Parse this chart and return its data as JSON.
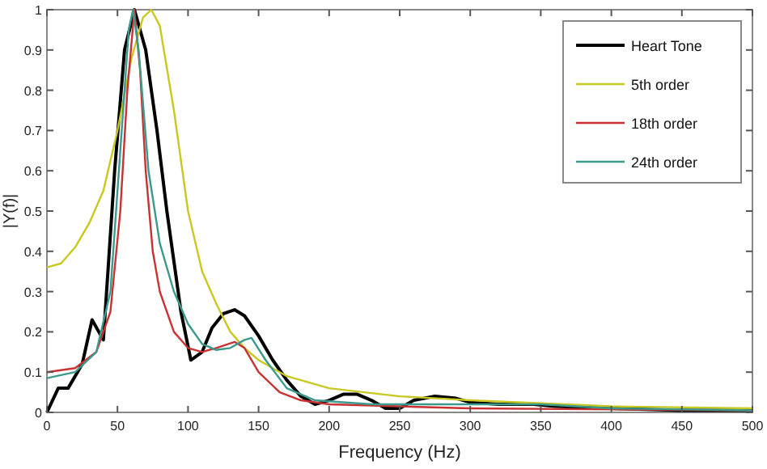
{
  "chart_data": {
    "type": "line",
    "xlabel": "Frequency (Hz)",
    "ylabel": "|Y(f)|",
    "xlim": [
      0,
      500
    ],
    "ylim": [
      0,
      1
    ],
    "xticks": [
      0,
      50,
      100,
      150,
      200,
      250,
      300,
      350,
      400,
      450,
      500
    ],
    "yticks": [
      0,
      0.1,
      0.2,
      0.3,
      0.4,
      0.5,
      0.6,
      0.7,
      0.8,
      0.9,
      1
    ],
    "grid": false,
    "legend": "top right",
    "marker": "none",
    "line_style": "solid",
    "series": [
      {
        "name": "Heart Tone",
        "color": "#000000",
        "x": [
          0,
          8,
          15,
          25,
          32,
          40,
          48,
          55,
          62,
          70,
          78,
          85,
          95,
          102,
          110,
          117,
          125,
          133,
          140,
          150,
          160,
          170,
          180,
          190,
          200,
          210,
          220,
          230,
          240,
          250,
          260,
          275,
          290,
          300,
          320,
          345,
          360,
          400,
          450,
          500
        ],
        "values": [
          0,
          0.06,
          0.06,
          0.12,
          0.23,
          0.18,
          0.6,
          0.9,
          1,
          0.9,
          0.7,
          0.5,
          0.25,
          0.13,
          0.15,
          0.21,
          0.245,
          0.255,
          0.24,
          0.19,
          0.13,
          0.08,
          0.04,
          0.02,
          0.03,
          0.045,
          0.045,
          0.03,
          0.01,
          0.01,
          0.03,
          0.04,
          0.035,
          0.025,
          0.02,
          0.02,
          0.015,
          0.01,
          0.005,
          0.005
        ]
      },
      {
        "name": "5th order",
        "color": "#c8c820",
        "x": [
          0,
          10,
          20,
          30,
          40,
          50,
          60,
          68,
          74,
          80,
          90,
          100,
          110,
          120,
          130,
          140,
          150,
          170,
          200,
          250,
          300,
          400,
          500
        ],
        "values": [
          0.36,
          0.37,
          0.41,
          0.47,
          0.55,
          0.7,
          0.88,
          0.98,
          1,
          0.96,
          0.75,
          0.5,
          0.35,
          0.27,
          0.2,
          0.16,
          0.13,
          0.09,
          0.06,
          0.04,
          0.03,
          0.015,
          0.01
        ]
      },
      {
        "name": "18th order",
        "color": "#c83232",
        "x": [
          0,
          20,
          35,
          45,
          52,
          57,
          62,
          66,
          70,
          75,
          80,
          90,
          100,
          110,
          120,
          133,
          140,
          150,
          165,
          180,
          200,
          250,
          300,
          500
        ],
        "values": [
          0.1,
          0.11,
          0.15,
          0.25,
          0.5,
          0.8,
          1,
          0.85,
          0.6,
          0.4,
          0.3,
          0.2,
          0.16,
          0.15,
          0.16,
          0.175,
          0.16,
          0.1,
          0.05,
          0.03,
          0.02,
          0.015,
          0.01,
          0.005
        ]
      },
      {
        "name": "24th order",
        "color": "#3c9a8c",
        "x": [
          0,
          20,
          35,
          45,
          52,
          58,
          61,
          65,
          72,
          80,
          90,
          100,
          110,
          120,
          130,
          140,
          145,
          155,
          170,
          190,
          230,
          300,
          350,
          400,
          500
        ],
        "values": [
          0.085,
          0.1,
          0.15,
          0.3,
          0.65,
          0.95,
          1,
          0.9,
          0.6,
          0.42,
          0.3,
          0.22,
          0.17,
          0.155,
          0.16,
          0.18,
          0.185,
          0.13,
          0.06,
          0.03,
          0.02,
          0.02,
          0.02,
          0.01,
          0.005
        ]
      }
    ]
  }
}
